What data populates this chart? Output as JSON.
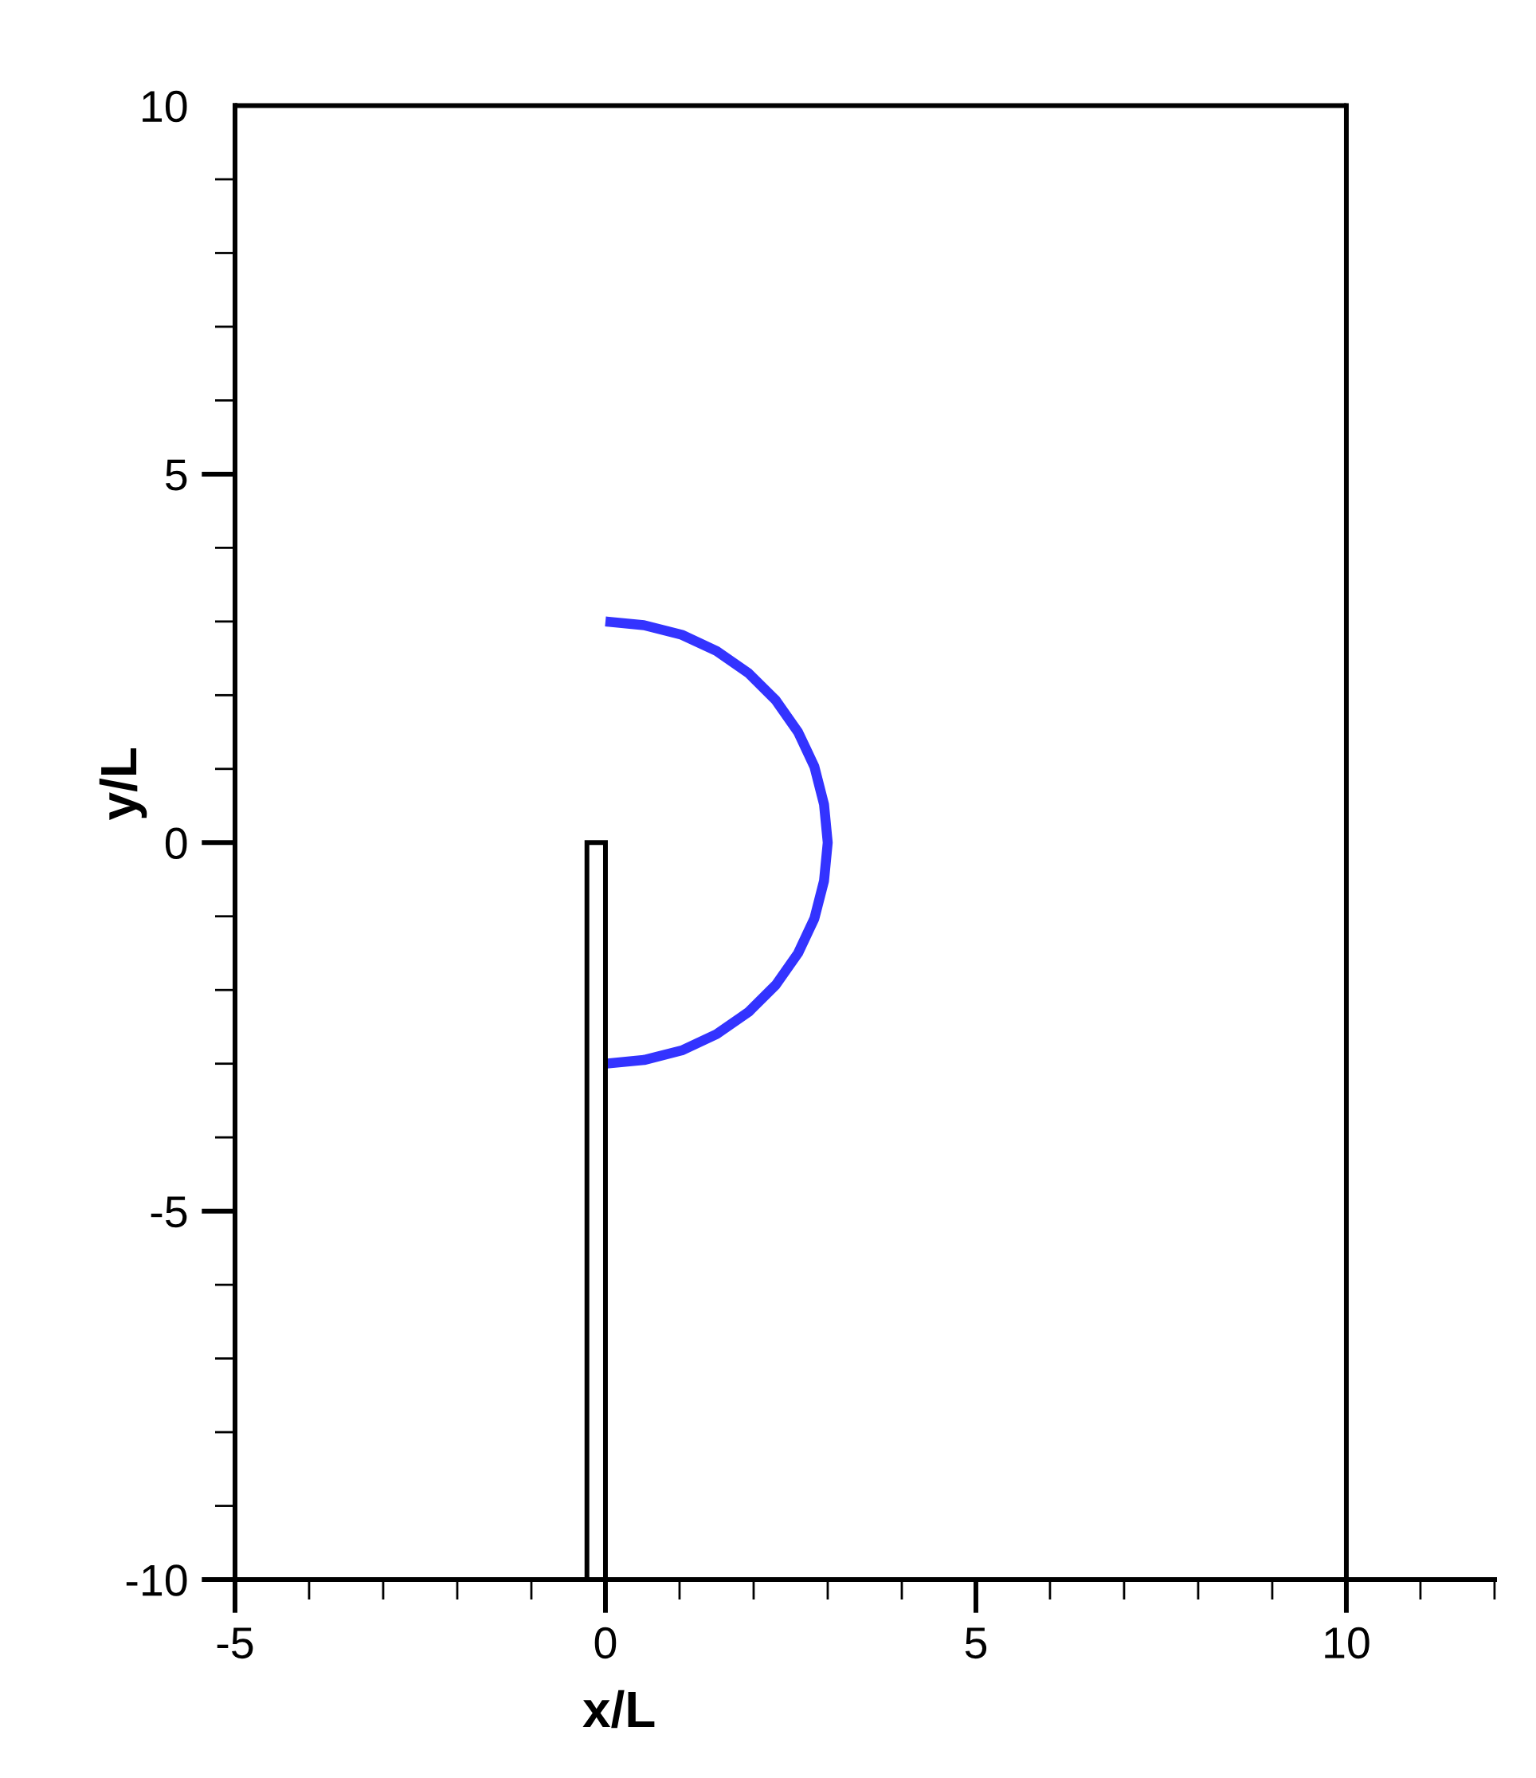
{
  "chart_data": {
    "type": "line",
    "xlabel": "x/L",
    "ylabel": "y/L",
    "xlim": [
      -5,
      12
    ],
    "ylim": [
      -10,
      10
    ],
    "xticks": [
      -5,
      0,
      5,
      10
    ],
    "yticks": [
      -10,
      -5,
      0,
      5,
      10
    ],
    "grid": false,
    "marker": "none",
    "line_style": "solid",
    "ref_lines": [
      {
        "axis": "x",
        "value": -5,
        "color": "#000000"
      },
      {
        "axis": "x",
        "value": 10,
        "color": "#000000"
      },
      {
        "axis": "y",
        "value": -10,
        "color": "#000000"
      }
    ],
    "series": [
      {
        "color": "#000000",
        "x": [
          -5,
          10
        ],
        "values": [
          10,
          10
        ]
      },
      {
        "type": "bar",
        "color": "#ffffff",
        "x": [
          -0.125
        ],
        "values": [
          10
        ],
        "base": [
          -10
        ]
      },
      {
        "color": "#3333ff",
        "x": [
          0,
          0.52,
          1.03,
          1.5,
          1.93,
          2.3,
          2.6,
          2.82,
          2.95,
          3,
          2.95,
          2.82,
          2.6,
          2.3,
          1.93,
          1.5,
          1.03,
          0.52,
          0
        ],
        "values": [
          3,
          2.95,
          2.82,
          2.6,
          2.3,
          1.93,
          1.5,
          1.03,
          0.52,
          0,
          -0.52,
          -1.03,
          -1.5,
          -1.93,
          -2.3,
          -2.6,
          -2.82,
          -2.95,
          -3
        ]
      }
    ]
  }
}
